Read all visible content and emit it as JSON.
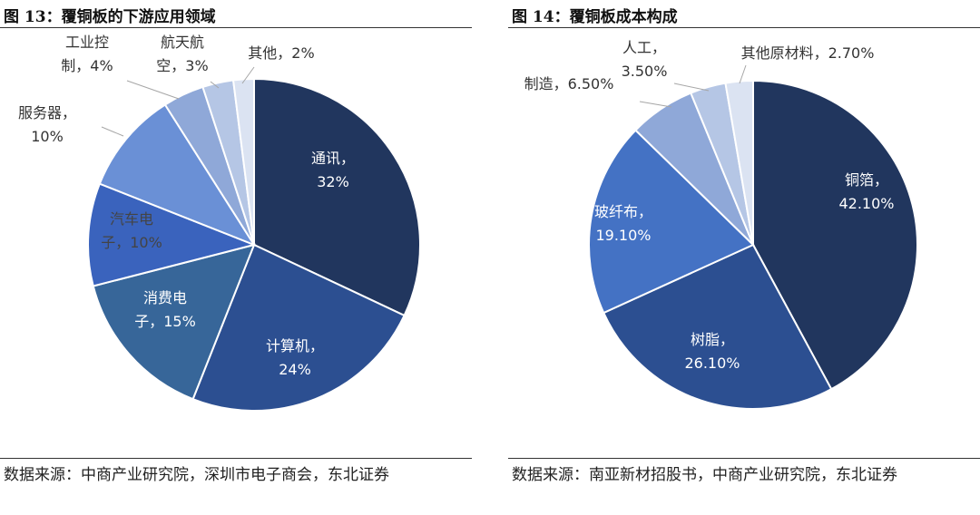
{
  "figures": [
    {
      "title": "图 13：覆铜板的下游应用领域",
      "source": "数据来源：中商产业研究院，深圳市电子商会，东北证券"
    },
    {
      "title": "图 14：覆铜板成本构成",
      "source": "数据来源：南亚新材招股书，中商产业研究院，东北证券"
    }
  ],
  "chart_data": [
    {
      "type": "pie",
      "title": "图 13：覆铜板的下游应用领域",
      "slices": [
        {
          "label": "通讯",
          "value": 32,
          "display": "32%",
          "color": "#21365e",
          "text_color": "#ffffff"
        },
        {
          "label": "计算机",
          "value": 24,
          "display": "24%",
          "color": "#2c4f91",
          "text_color": "#ffffff"
        },
        {
          "label": "消费电子",
          "value": 15,
          "display": "15%",
          "color": "#376699",
          "text_color": "#ffffff"
        },
        {
          "label": "汽车电子",
          "value": 10,
          "display": "10%",
          "color": "#3a63bd",
          "text_color": "#444444"
        },
        {
          "label": "服务器",
          "value": 10,
          "display": "10%",
          "color": "#6a90d6",
          "text_color": "#333333"
        },
        {
          "label": "工业控制",
          "value": 4,
          "display": "4%",
          "color": "#8fa8d8",
          "text_color": "#333333"
        },
        {
          "label": "航天航空",
          "value": 3,
          "display": "3%",
          "color": "#b5c6e5",
          "text_color": "#333333"
        },
        {
          "label": "其他",
          "value": 2,
          "display": "2%",
          "color": "#dbe3f2",
          "text_color": "#333333"
        }
      ],
      "labels": [
        {
          "lines": [
            "通讯，",
            "32%"
          ]
        },
        {
          "lines": [
            "计算机，",
            "24%"
          ]
        },
        {
          "lines": [
            "消费电",
            "子，15%"
          ]
        },
        {
          "lines": [
            "汽车电",
            "子，10%"
          ]
        },
        {
          "lines": [
            "服务器，",
            "10%"
          ]
        },
        {
          "lines": [
            "工业控",
            "制，4%"
          ]
        },
        {
          "lines": [
            "航天航",
            "空，3%"
          ]
        },
        {
          "lines": [
            "其他，2%"
          ]
        }
      ]
    },
    {
      "type": "pie",
      "title": "图 14：覆铜板成本构成",
      "slices": [
        {
          "label": "铜箔",
          "value": 42.1,
          "display": "42.10%",
          "color": "#21365e",
          "text_color": "#ffffff"
        },
        {
          "label": "树脂",
          "value": 26.1,
          "display": "26.10%",
          "color": "#2c4f91",
          "text_color": "#ffffff"
        },
        {
          "label": "玻纤布",
          "value": 19.1,
          "display": "19.10%",
          "color": "#4472c4",
          "text_color": "#ffffff"
        },
        {
          "label": "制造",
          "value": 6.5,
          "display": "6.50%",
          "color": "#8fa8d8",
          "text_color": "#333333"
        },
        {
          "label": "人工",
          "value": 3.5,
          "display": "3.50%",
          "color": "#b5c6e5",
          "text_color": "#333333"
        },
        {
          "label": "其他原材料",
          "value": 2.7,
          "display": "2.70%",
          "color": "#dbe3f2",
          "text_color": "#333333"
        }
      ],
      "labels": [
        {
          "lines": [
            "铜箔，",
            "42.10%"
          ]
        },
        {
          "lines": [
            "树脂，",
            "26.10%"
          ]
        },
        {
          "lines": [
            "玻纤布，",
            "19.10%"
          ]
        },
        {
          "lines": [
            "制造，6.50%"
          ]
        },
        {
          "lines": [
            "人工，",
            "3.50%"
          ]
        },
        {
          "lines": [
            "其他原材料，2.70%"
          ]
        }
      ]
    }
  ]
}
